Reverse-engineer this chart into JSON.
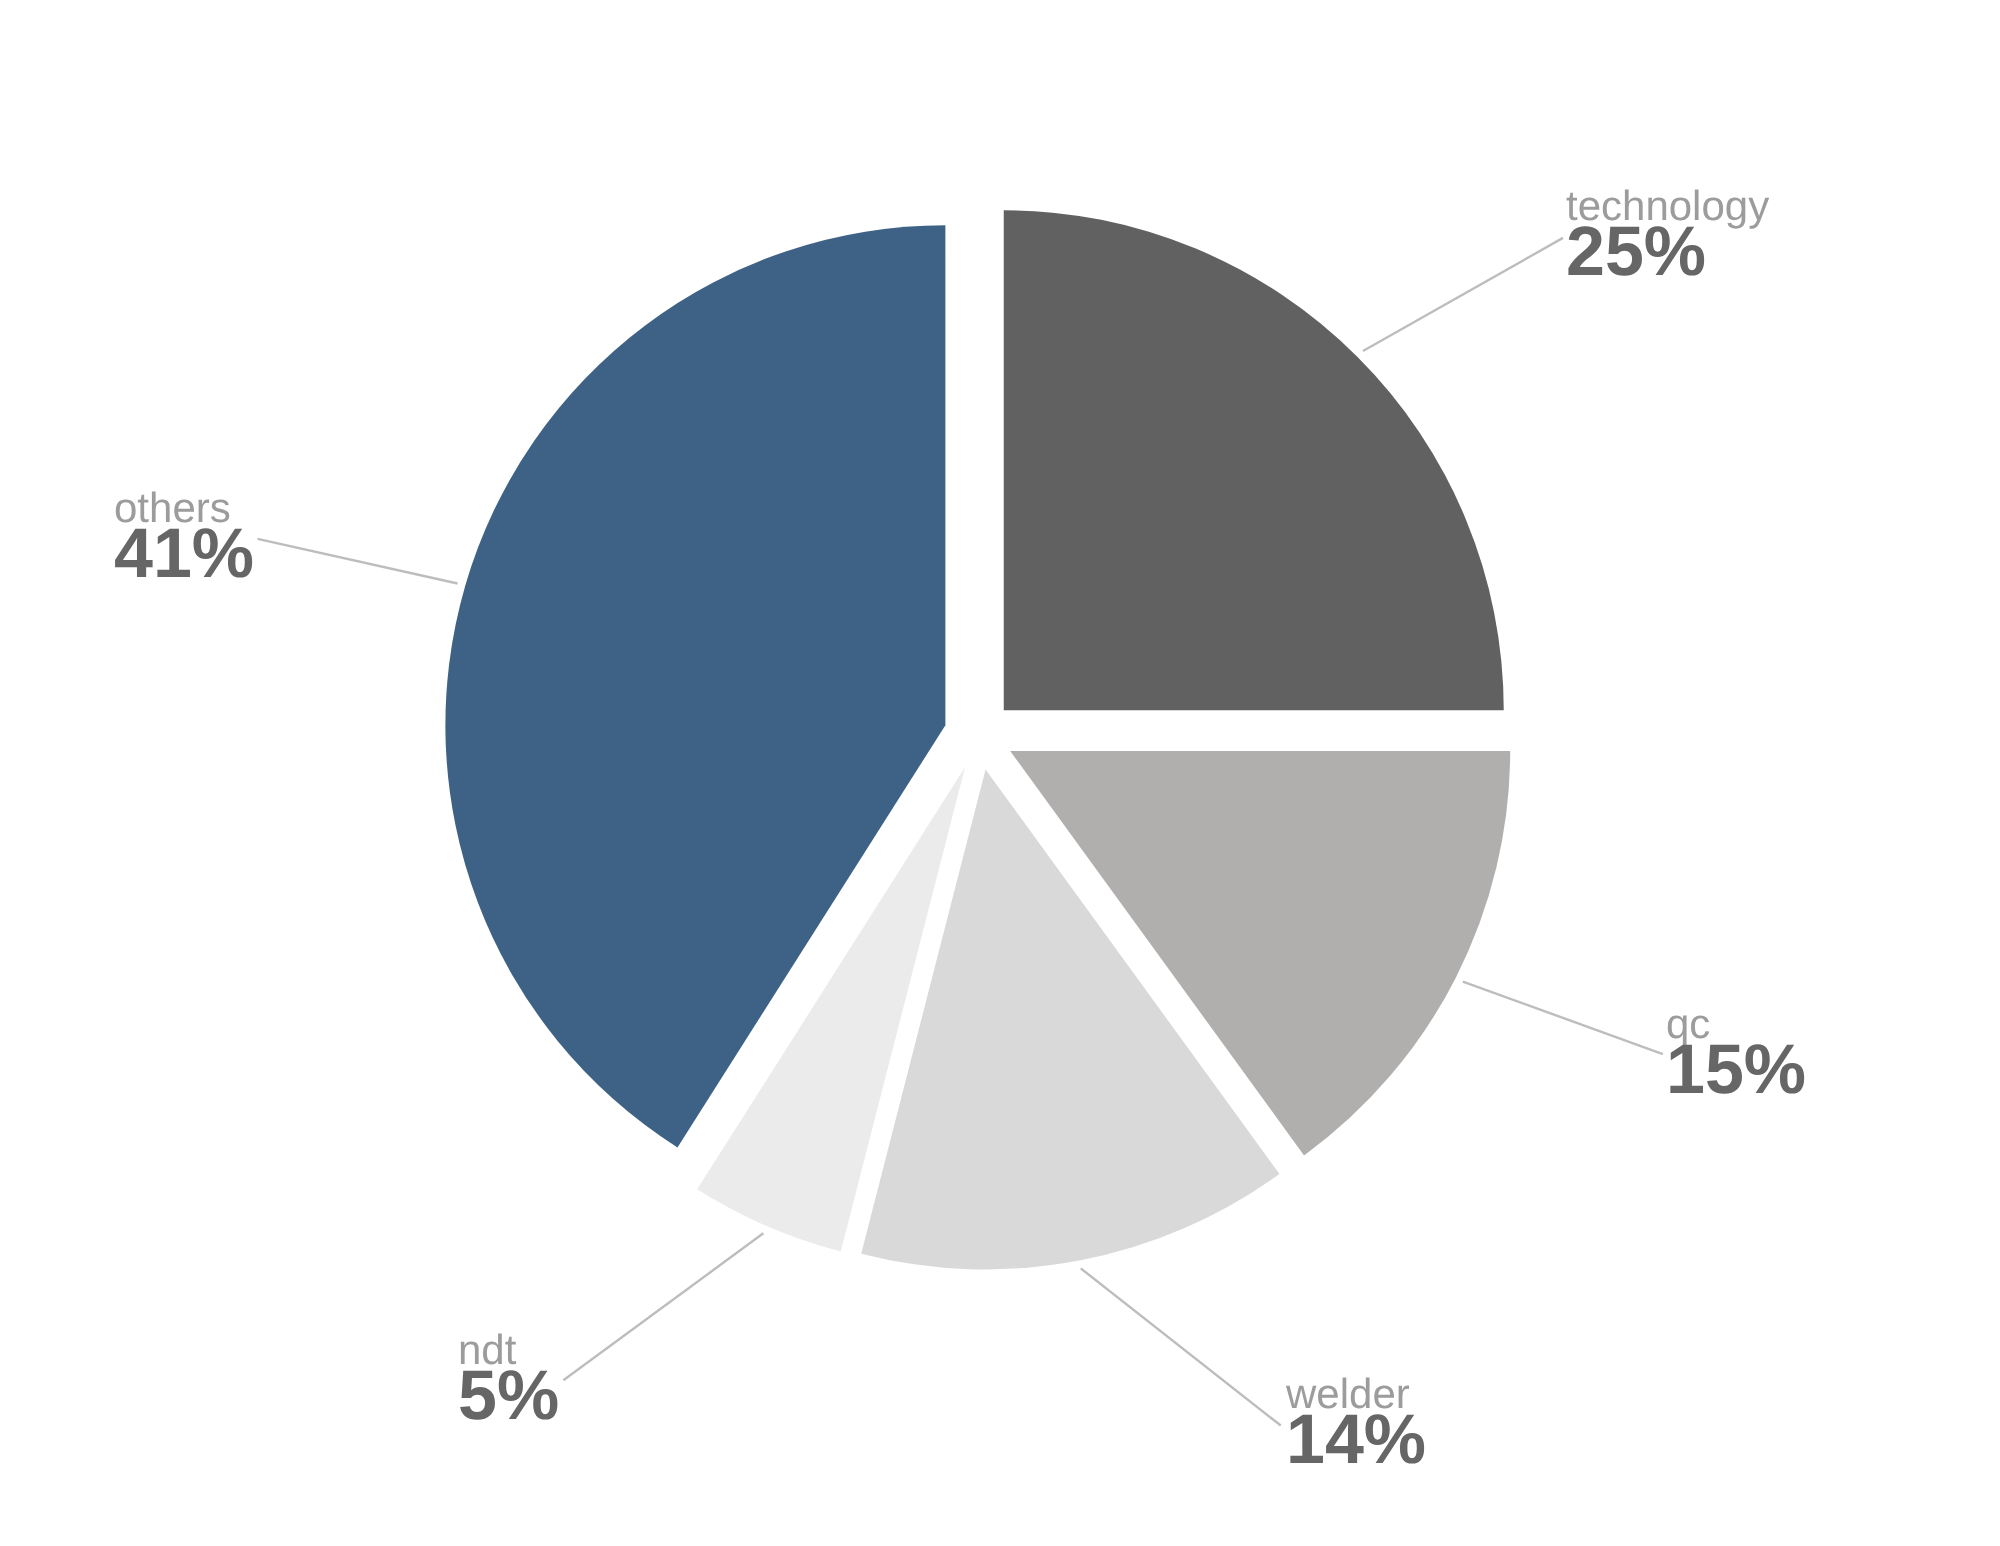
{
  "chart_data": {
    "type": "pie",
    "categories": [
      "technology",
      "qc",
      "welder",
      "ndt",
      "others"
    ],
    "values": [
      25,
      15,
      14,
      5,
      41
    ],
    "value_labels": [
      "25%",
      "15%",
      "14%",
      "5%",
      "41%"
    ],
    "colors": [
      "#616161",
      "#b1aeae",
      "#d9d9d9",
      "#ebebeb",
      "#3e6285"
    ]
  }
}
